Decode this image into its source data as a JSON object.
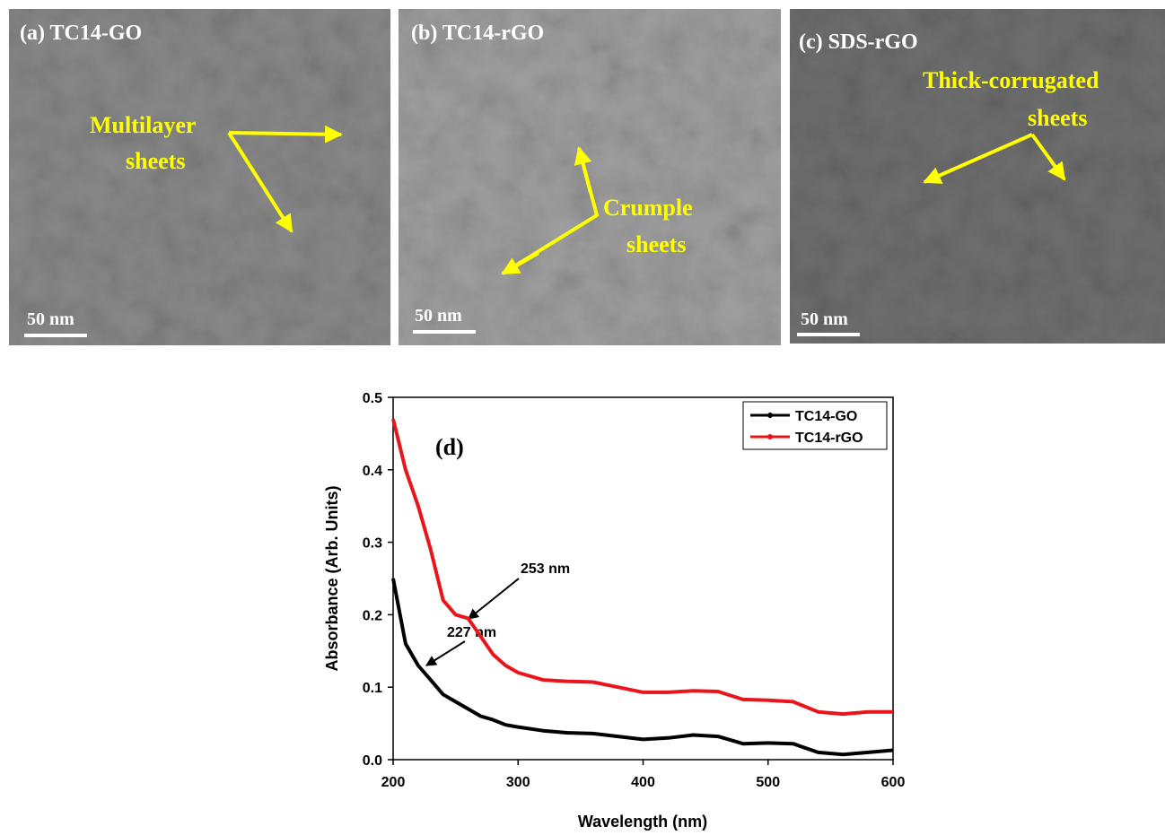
{
  "panels": [
    {
      "label": "(a) TC14-GO",
      "annotation": [
        "Multilayer",
        "sheets"
      ],
      "scale_bar": "50 nm"
    },
    {
      "label": "(b) TC14-rGO",
      "annotation": [
        "Crumple",
        "sheets"
      ],
      "scale_bar": "50 nm"
    },
    {
      "label": "(c) SDS-rGO",
      "annotation": [
        "Thick-corrugated",
        "sheets"
      ],
      "scale_bar": "50 nm"
    }
  ],
  "chart_data": {
    "type": "line",
    "panel_label": "(d)",
    "x_label": "Wavelength (nm)",
    "y_label": "Absorbance (Arb. Units)",
    "x": [
      200,
      210,
      220,
      230,
      240,
      250,
      260,
      270,
      280,
      290,
      300,
      320,
      340,
      360,
      380,
      400,
      420,
      440,
      460,
      480,
      500,
      520,
      540,
      560,
      580,
      600
    ],
    "series": [
      {
        "name": "TC14-GO",
        "color": "#000000",
        "values": [
          0.25,
          0.16,
          0.13,
          0.11,
          0.09,
          0.08,
          0.07,
          0.06,
          0.055,
          0.048,
          0.045,
          0.04,
          0.037,
          0.036,
          0.032,
          0.028,
          0.03,
          0.034,
          0.032,
          0.022,
          0.023,
          0.022,
          0.01,
          0.007,
          0.01,
          0.013
        ]
      },
      {
        "name": "TC14-rGO",
        "color": "#e8161b",
        "values": [
          0.47,
          0.4,
          0.35,
          0.29,
          0.22,
          0.2,
          0.195,
          0.17,
          0.145,
          0.13,
          0.12,
          0.11,
          0.108,
          0.107,
          0.1,
          0.093,
          0.093,
          0.095,
          0.094,
          0.083,
          0.082,
          0.08,
          0.066,
          0.063,
          0.066,
          0.066
        ]
      }
    ],
    "annotations": [
      "253 nm",
      "227 nm"
    ],
    "xlim": [
      200,
      600
    ],
    "xticks": [
      200,
      300,
      400,
      500,
      600
    ],
    "ylim": [
      0,
      0.5
    ],
    "yticks": [
      {
        "value": 0,
        "label": "0.0"
      },
      0.1,
      0.2,
      0.3,
      0.4,
      0.5
    ],
    "legend": "upper right"
  }
}
